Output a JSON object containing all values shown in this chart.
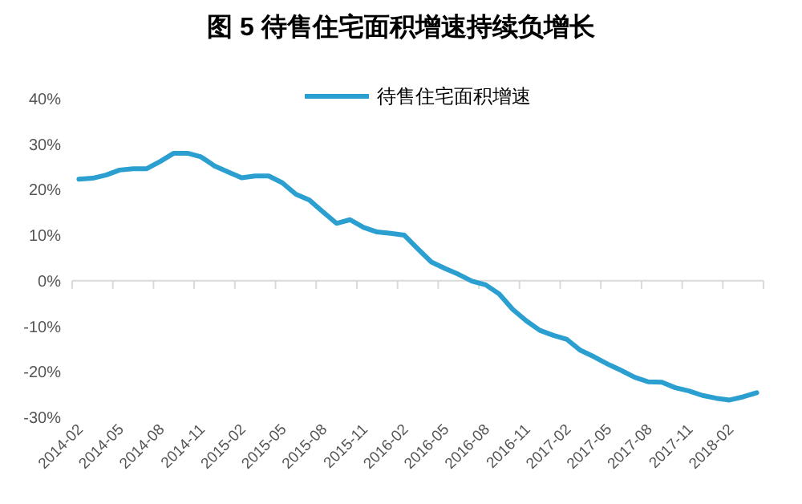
{
  "chart_data": {
    "type": "line",
    "title": "图 5  待售住宅面积增速持续负增长",
    "categories": [
      "2014-02",
      null,
      null,
      "2014-05",
      null,
      null,
      "2014-08",
      null,
      null,
      "2014-11",
      null,
      null,
      "2015-02",
      null,
      null,
      "2015-05",
      null,
      null,
      "2015-08",
      null,
      null,
      "2015-11",
      null,
      null,
      "2016-02",
      null,
      null,
      "2016-05",
      null,
      null,
      "2016-08",
      null,
      null,
      "2016-11",
      null,
      null,
      "2017-02",
      null,
      null,
      "2017-05",
      null,
      null,
      "2017-08",
      null,
      null,
      "2017-11",
      null,
      null,
      "2018-02",
      null,
      null
    ],
    "series": [
      {
        "name": "待售住宅面积增速",
        "color": "#2a9fd0",
        "values": [
          22.3,
          22.5,
          23.2,
          24.3,
          24.6,
          24.6,
          26.2,
          28.0,
          28.0,
          27.2,
          25.2,
          23.9,
          22.6,
          23.0,
          23.0,
          21.5,
          19.0,
          17.7,
          15.1,
          12.6,
          13.4,
          11.7,
          10.7,
          10.4,
          10.0,
          7.0,
          4.1,
          2.7,
          1.4,
          -0.1,
          -0.9,
          -2.9,
          -6.3,
          -8.8,
          -10.9,
          -12.0,
          -12.9,
          -15.3,
          -16.7,
          -18.3,
          -19.7,
          -21.2,
          -22.2,
          -22.3,
          -23.5,
          -24.2,
          -25.2,
          -25.8,
          -26.2,
          -25.5,
          -24.6
        ]
      }
    ],
    "ylim": [
      -30,
      40
    ],
    "yticks": [
      {
        "value": -30,
        "label": "-30%"
      },
      {
        "value": -20,
        "label": "-20%"
      },
      {
        "value": -10,
        "label": "-10%"
      },
      {
        "value": 0,
        "label": "0%"
      },
      {
        "value": 10,
        "label": "10%"
      },
      {
        "value": 20,
        "label": "20%"
      },
      {
        "value": 30,
        "label": "30%"
      },
      {
        "value": 40,
        "label": "40%"
      }
    ],
    "legend": "top",
    "marker": "none",
    "line_style": "solid"
  }
}
